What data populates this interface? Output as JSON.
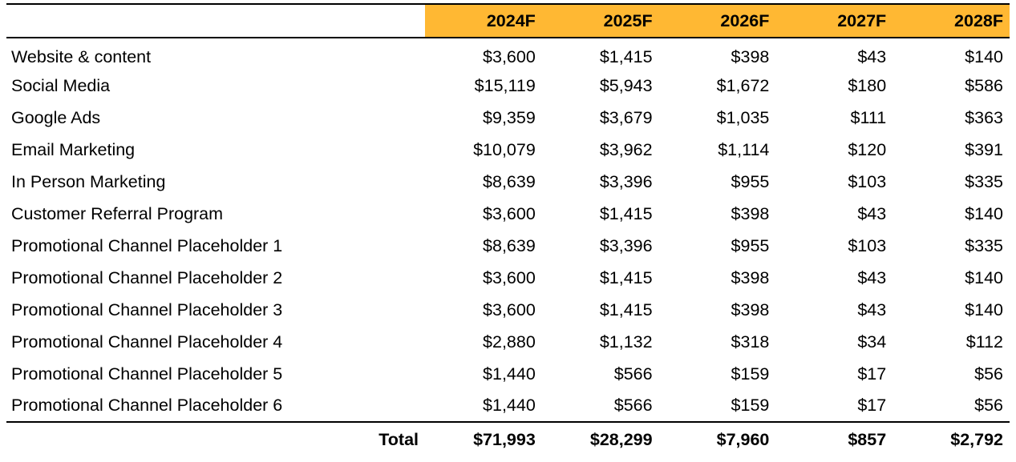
{
  "header": {
    "years": [
      "2024F",
      "2025F",
      "2026F",
      "2027F",
      "2028F"
    ],
    "accent_color": "#FFB833"
  },
  "rows": [
    {
      "label": "Website & content",
      "values": [
        "$3,600",
        "$1,415",
        "$398",
        "$43",
        "$140"
      ]
    },
    {
      "label": "Social Media",
      "values": [
        "$15,119",
        "$5,943",
        "$1,672",
        "$180",
        "$586"
      ]
    },
    {
      "label": "Google Ads",
      "values": [
        "$9,359",
        "$3,679",
        "$1,035",
        "$111",
        "$363"
      ]
    },
    {
      "label": "Email Marketing",
      "values": [
        "$10,079",
        "$3,962",
        "$1,114",
        "$120",
        "$391"
      ]
    },
    {
      "label": "In Person Marketing",
      "values": [
        "$8,639",
        "$3,396",
        "$955",
        "$103",
        "$335"
      ]
    },
    {
      "label": "Customer Referral Program",
      "values": [
        "$3,600",
        "$1,415",
        "$398",
        "$43",
        "$140"
      ]
    },
    {
      "label": "Promotional Channel Placeholder 1",
      "values": [
        "$8,639",
        "$3,396",
        "$955",
        "$103",
        "$335"
      ]
    },
    {
      "label": "Promotional Channel Placeholder 2",
      "values": [
        "$3,600",
        "$1,415",
        "$398",
        "$43",
        "$140"
      ]
    },
    {
      "label": "Promotional Channel Placeholder 3",
      "values": [
        "$3,600",
        "$1,415",
        "$398",
        "$43",
        "$140"
      ]
    },
    {
      "label": "Promotional Channel Placeholder 4",
      "values": [
        "$2,880",
        "$1,132",
        "$318",
        "$34",
        "$112"
      ]
    },
    {
      "label": "Promotional Channel Placeholder 5",
      "values": [
        "$1,440",
        "$566",
        "$159",
        "$17",
        "$56"
      ]
    },
    {
      "label": "Promotional Channel Placeholder 6",
      "values": [
        "$1,440",
        "$566",
        "$159",
        "$17",
        "$56"
      ]
    }
  ],
  "total": {
    "label": "Total",
    "values": [
      "$71,993",
      "$28,299",
      "$7,960",
      "$857",
      "$2,792"
    ]
  }
}
